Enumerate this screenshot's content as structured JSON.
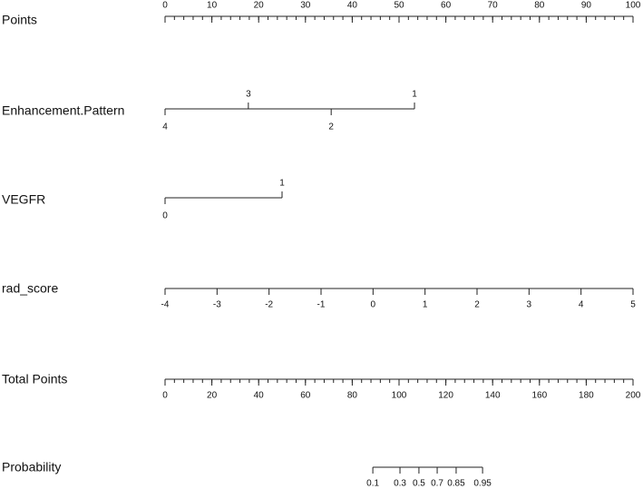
{
  "chart_data": {
    "type": "nomogram",
    "points_axis": {
      "label": "Points",
      "lim": [
        0,
        100
      ],
      "ticks": [
        0,
        10,
        20,
        30,
        40,
        50,
        60,
        70,
        80,
        90,
        100
      ],
      "minor_tick_step": 2
    },
    "variables": [
      {
        "label": "Enhancement.Pattern",
        "levels": [
          "4",
          "3",
          "2",
          "1"
        ],
        "points": [
          0,
          17.8,
          35.5,
          53.3
        ],
        "label_side": [
          "below",
          "above",
          "below",
          "above"
        ]
      },
      {
        "label": "VEGFR",
        "levels": [
          "0",
          "1"
        ],
        "points": [
          0,
          25
        ],
        "label_side": [
          "below",
          "above"
        ]
      }
    ],
    "rad_score": {
      "label": "rad_score",
      "lim": [
        -4,
        5
      ],
      "ticks": [
        -4,
        -3,
        -2,
        -1,
        0,
        1,
        2,
        3,
        4,
        5
      ]
    },
    "total_points_axis": {
      "label": "Total Points",
      "lim": [
        0,
        200
      ],
      "ticks": [
        0,
        20,
        40,
        60,
        80,
        100,
        120,
        140,
        160,
        180,
        200
      ],
      "minor_tick_step": 4
    },
    "probability": {
      "label": "Probability",
      "ticks": [
        0.1,
        0.3,
        0.5,
        0.7,
        0.85,
        0.95
      ],
      "total_points": [
        88.8,
        100.4,
        108.5,
        116.3,
        124.4,
        135.7
      ]
    }
  }
}
